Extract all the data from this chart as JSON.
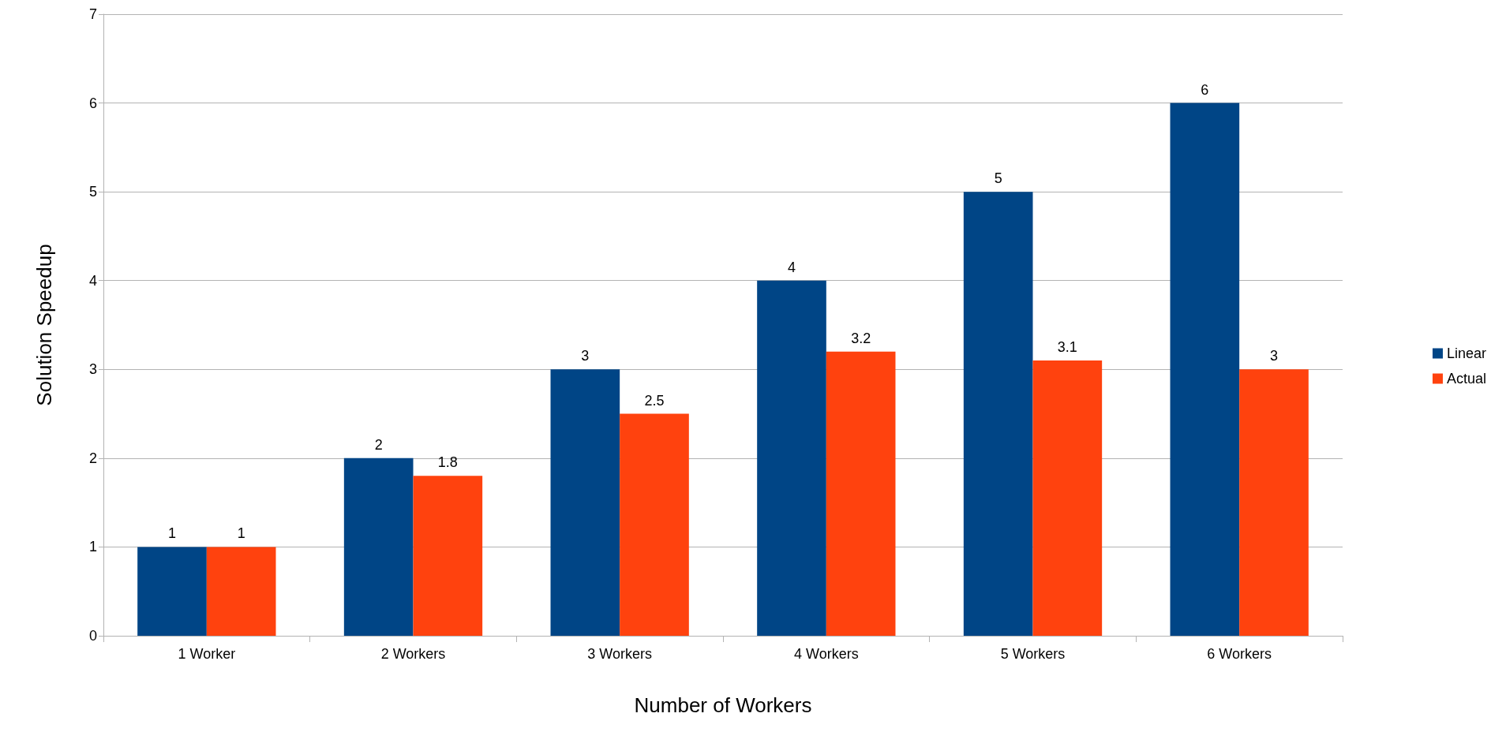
{
  "chart_data": {
    "type": "bar",
    "xlabel": "Number of Workers",
    "ylabel": "Solution Speedup",
    "categories": [
      "1 Worker",
      "2 Workers",
      "3 Workers",
      "4 Workers",
      "5 Workers",
      "6 Workers"
    ],
    "series": [
      {
        "name": "Linear",
        "color": "#004586",
        "values": [
          1,
          2,
          3,
          4,
          5,
          6
        ]
      },
      {
        "name": "Actual",
        "color": "#ff420e",
        "values": [
          1,
          1.8,
          2.5,
          3.2,
          3.1,
          3
        ]
      }
    ],
    "ylim": [
      0,
      7
    ],
    "yticks": [
      0,
      1,
      2,
      3,
      4,
      5,
      6,
      7
    ],
    "grid": "y",
    "legend": "right",
    "data_labels": true
  }
}
